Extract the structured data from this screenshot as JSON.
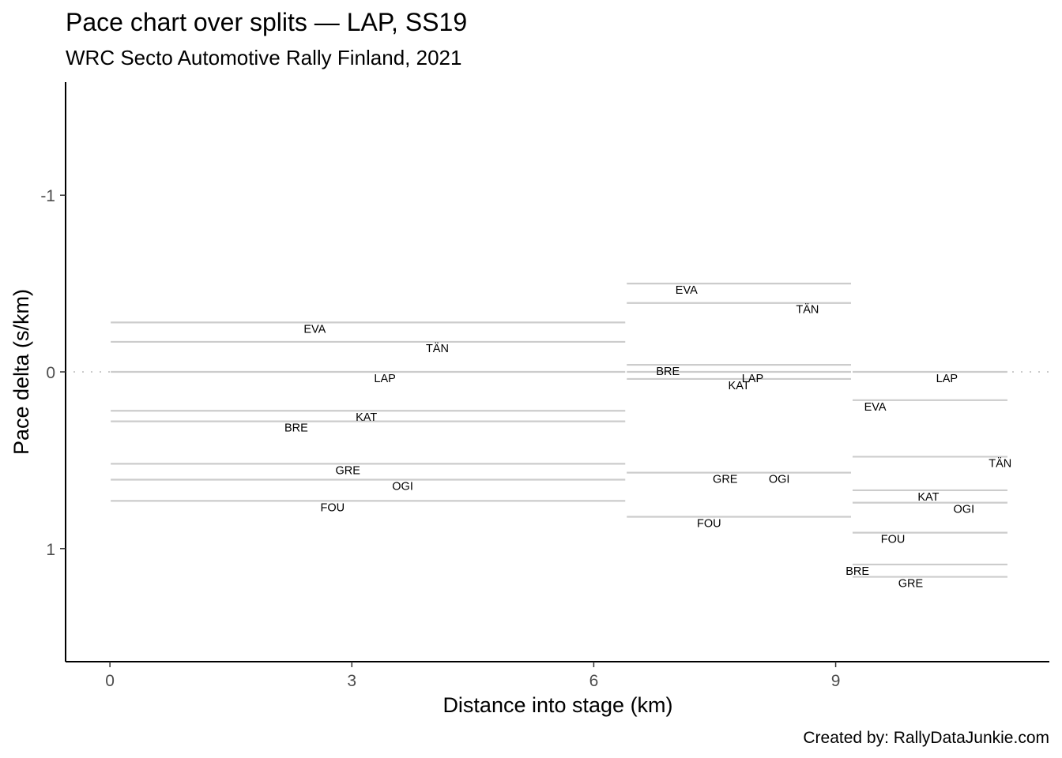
{
  "chart_data": {
    "type": "line",
    "title": "Pace chart over splits — LAP, SS19",
    "subtitle": "WRC Secto Automotive Rally Finland, 2021",
    "xlabel": "Distance into stage (km)",
    "ylabel": "Pace delta (s/km)",
    "caption": "Created by: RallyDataJunkie.com",
    "xlim": [
      -0.55,
      11.65
    ],
    "ylim": [
      1.64,
      -1.64
    ],
    "y_reversed": true,
    "x_ticks": [
      0,
      3,
      6,
      9
    ],
    "x_tick_labels": [
      "0",
      "3",
      "6",
      "9"
    ],
    "y_ticks": [
      -1,
      0,
      1
    ],
    "y_tick_labels": [
      "-1",
      "0",
      "1"
    ],
    "reference_line": 0,
    "grid": false,
    "line_color": "#cccccc",
    "segments": [
      {
        "start": 0,
        "end": 6.4,
        "drivers": [
          {
            "code": "EVA",
            "pace": -0.28,
            "label_x": 2.54
          },
          {
            "code": "TÄN",
            "pace": -0.17,
            "label_x": 4.06
          },
          {
            "code": "LAP",
            "pace": 0.0,
            "label_x": 3.41
          },
          {
            "code": "KAT",
            "pace": 0.22,
            "label_x": 3.18
          },
          {
            "code": "BRE",
            "pace": 0.28,
            "label_x": 2.31
          },
          {
            "code": "GRE",
            "pace": 0.52,
            "label_x": 2.95
          },
          {
            "code": "OGI",
            "pace": 0.61,
            "label_x": 3.63
          },
          {
            "code": "FOU",
            "pace": 0.73,
            "label_x": 2.76
          }
        ]
      },
      {
        "start": 6.4,
        "end": 9.2,
        "drivers": [
          {
            "code": "EVA",
            "pace": -0.5,
            "label_x": 7.15
          },
          {
            "code": "TÄN",
            "pace": -0.39,
            "label_x": 8.65
          },
          {
            "code": "BRE",
            "pace": -0.04,
            "label_x": 6.92
          },
          {
            "code": "LAP",
            "pace": 0.0,
            "label_x": 7.97
          },
          {
            "code": "KAT",
            "pace": 0.04,
            "label_x": 7.8
          },
          {
            "code": "GRE",
            "pace": 0.57,
            "label_x": 7.63
          },
          {
            "code": "OGI",
            "pace": 0.57,
            "label_x": 8.3
          },
          {
            "code": "FOU",
            "pace": 0.82,
            "label_x": 7.43
          }
        ]
      },
      {
        "start": 9.2,
        "end": 11.14,
        "drivers": [
          {
            "code": "LAP",
            "pace": 0.0,
            "label_x": 10.38
          },
          {
            "code": "EVA",
            "pace": 0.16,
            "label_x": 9.49
          },
          {
            "code": "TÄN",
            "pace": 0.48,
            "label_x": 11.04
          },
          {
            "code": "KAT",
            "pace": 0.67,
            "label_x": 10.15
          },
          {
            "code": "OGI",
            "pace": 0.74,
            "label_x": 10.59
          },
          {
            "code": "FOU",
            "pace": 0.91,
            "label_x": 9.71
          },
          {
            "code": "BRE",
            "pace": 1.09,
            "label_x": 9.27
          },
          {
            "code": "GRE",
            "pace": 1.16,
            "label_x": 9.93
          }
        ]
      }
    ]
  }
}
